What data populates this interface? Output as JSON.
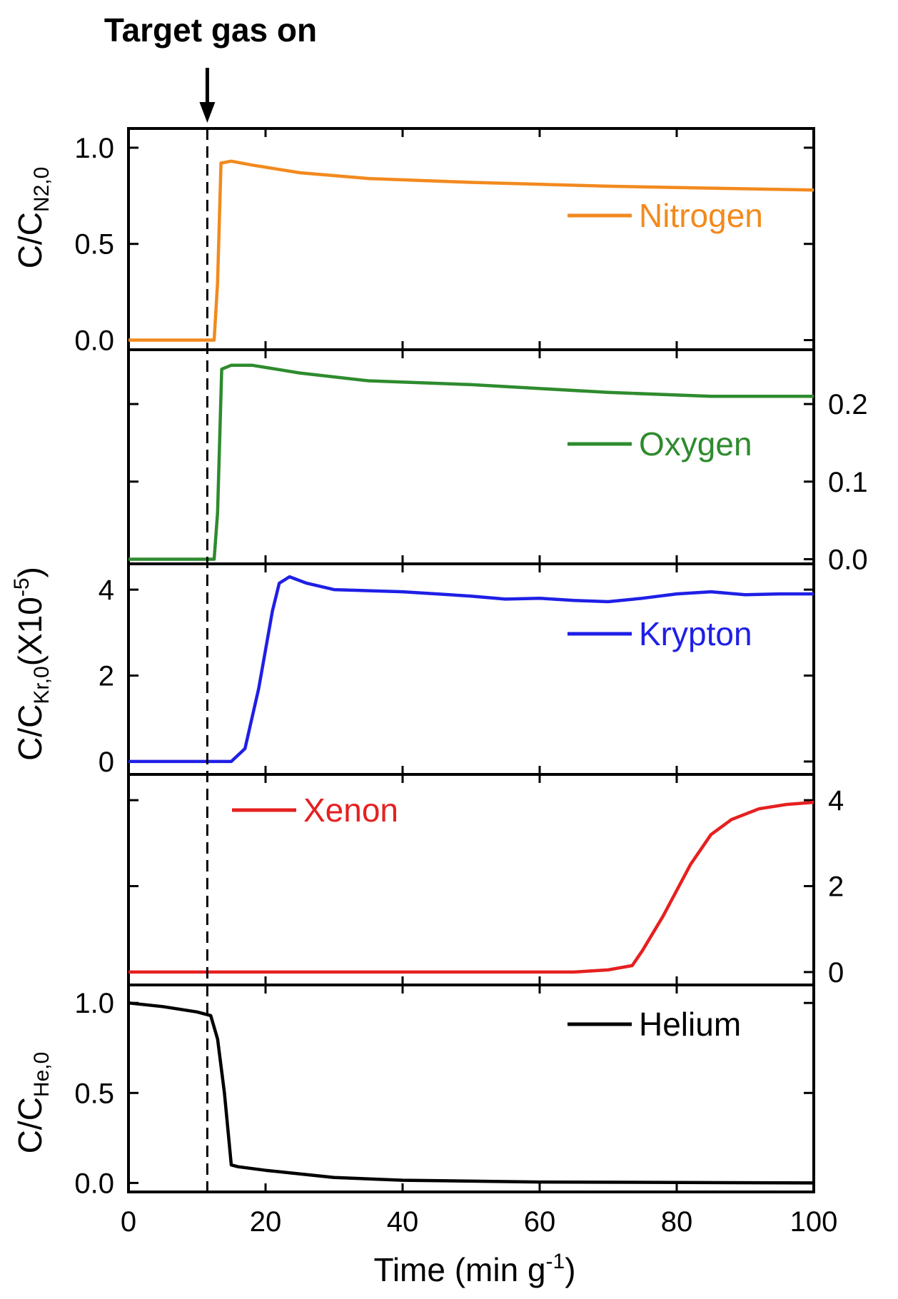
{
  "annotation": {
    "text": "Target gas on",
    "x": 11.5
  },
  "xaxis": {
    "label_main": "Time (min g",
    "label_sup": "-1",
    "label_close": ")",
    "range": [
      0,
      100
    ],
    "ticks": [
      0,
      20,
      40,
      60,
      80,
      100
    ],
    "tick_labels": [
      "0",
      "20",
      "40",
      "60",
      "80",
      "100"
    ]
  },
  "ylabels": {
    "nitrogen": {
      "main": "C/C",
      "sub": "N2,0"
    },
    "krypton_xenon": {
      "main": "C/C",
      "sub": "Kr,0",
      "tail": "(X10",
      "sup": "-5",
      "close": ")"
    },
    "helium": {
      "main": "C/C",
      "sub": "He,0"
    }
  },
  "colors": {
    "nitrogen": "#f28a1e",
    "oxygen": "#2e8b2e",
    "krypton": "#1f1fe6",
    "xenon": "#e62020",
    "helium": "#000000"
  },
  "chart_data": [
    {
      "type": "line",
      "series": [
        {
          "name": "Nitrogen",
          "x": [
            0,
            12.5,
            13,
            13.5,
            15,
            18,
            25,
            35,
            50,
            70,
            85,
            100
          ],
          "y": [
            0,
            0,
            0.3,
            0.92,
            0.93,
            0.91,
            0.87,
            0.84,
            0.82,
            0.8,
            0.79,
            0.78
          ]
        }
      ],
      "ylim": [
        -0.05,
        1.1
      ],
      "yticks": [
        0.0,
        0.5,
        1.0
      ],
      "ytick_labels": [
        "0.0",
        "0.5",
        "1.0"
      ],
      "ytick_side": "left",
      "legend": "right"
    },
    {
      "type": "line",
      "series": [
        {
          "name": "Oxygen",
          "x": [
            0,
            12.5,
            13,
            13.6,
            15,
            18,
            25,
            35,
            50,
            70,
            85,
            100
          ],
          "y": [
            0,
            0,
            0.06,
            0.245,
            0.25,
            0.25,
            0.24,
            0.23,
            0.225,
            0.215,
            0.21,
            0.21
          ]
        }
      ],
      "ylim": [
        -0.006,
        0.27
      ],
      "yticks": [
        0.0,
        0.1,
        0.2
      ],
      "ytick_labels": [
        "0.0",
        "0.1",
        "0.2"
      ],
      "ytick_side": "right",
      "legend": "right"
    },
    {
      "type": "line",
      "series": [
        {
          "name": "Krypton",
          "x": [
            0,
            15,
            17,
            19,
            21,
            22,
            23.5,
            26,
            30,
            40,
            50,
            55,
            60,
            65,
            70,
            75,
            80,
            85,
            90,
            95,
            100
          ],
          "y": [
            0,
            0,
            0.3,
            1.7,
            3.5,
            4.15,
            4.3,
            4.15,
            4.0,
            3.95,
            3.85,
            3.78,
            3.8,
            3.75,
            3.72,
            3.8,
            3.9,
            3.95,
            3.88,
            3.9,
            3.9
          ]
        }
      ],
      "ylim": [
        -0.3,
        4.6
      ],
      "yticks": [
        0,
        2,
        4
      ],
      "ytick_labels": [
        "0",
        "2",
        "4"
      ],
      "ytick_side": "left",
      "legend": "right"
    },
    {
      "type": "line",
      "series": [
        {
          "name": "Xenon",
          "x": [
            0,
            65,
            70,
            73.5,
            75,
            78,
            82,
            85,
            88,
            92,
            96,
            100
          ],
          "y": [
            0,
            0,
            0.05,
            0.15,
            0.5,
            1.3,
            2.5,
            3.2,
            3.55,
            3.8,
            3.9,
            3.95
          ]
        }
      ],
      "ylim": [
        -0.3,
        4.6
      ],
      "yticks": [
        0,
        2,
        4
      ],
      "ytick_labels": [
        "0",
        "2",
        "4"
      ],
      "ytick_side": "right",
      "legend": "left"
    },
    {
      "type": "line",
      "series": [
        {
          "name": "Helium",
          "x": [
            0,
            5,
            10,
            12,
            13,
            14,
            15,
            16,
            20,
            30,
            40,
            60,
            100
          ],
          "y": [
            1.0,
            0.98,
            0.95,
            0.93,
            0.8,
            0.5,
            0.1,
            0.09,
            0.07,
            0.03,
            0.015,
            0.005,
            0.0
          ]
        }
      ],
      "ylim": [
        -0.05,
        1.1
      ],
      "yticks": [
        0.0,
        0.5,
        1.0
      ],
      "ytick_labels": [
        "0.0",
        "0.5",
        "1.0"
      ],
      "ytick_side": "left",
      "legend": "right"
    }
  ]
}
